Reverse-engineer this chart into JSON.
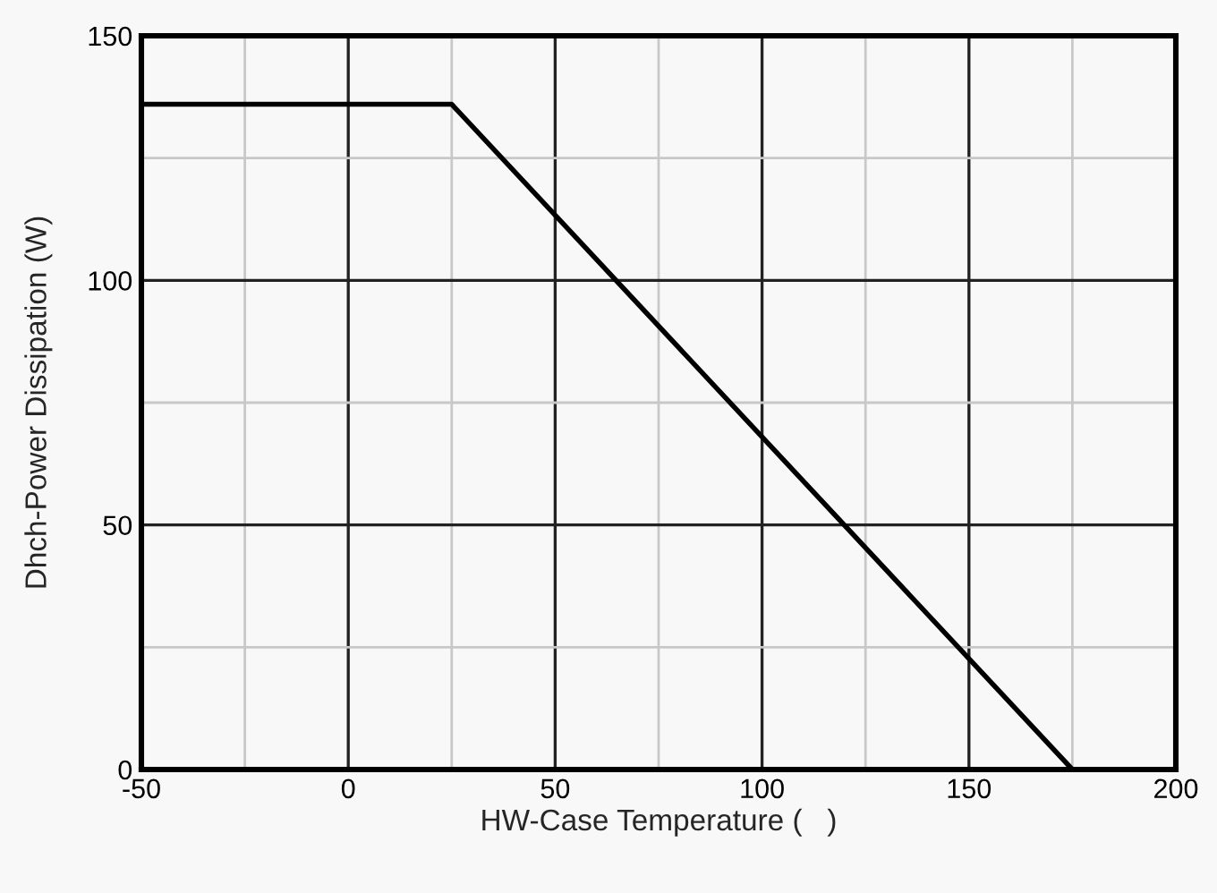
{
  "chart_data": {
    "type": "line",
    "xlabel": "HW-Case Temperature (   )",
    "ylabel": "Dhch-Power Dissipation (W)",
    "x": [
      -50,
      25,
      175
    ],
    "series": [
      {
        "color": "#000000",
        "values": [
          136,
          136,
          0
        ]
      }
    ],
    "xlim": [
      -50,
      200
    ],
    "ylim": [
      0,
      150
    ],
    "xticks": [
      -50,
      {
        "value": -25,
        "label": null
      },
      0,
      {
        "value": 25,
        "label": null
      },
      50,
      {
        "value": 75,
        "label": null
      },
      100,
      {
        "value": 125,
        "label": null
      },
      150,
      {
        "value": 175,
        "label": null
      },
      200
    ],
    "yticks": [
      0,
      {
        "value": 25,
        "label": null
      },
      50,
      {
        "value": 75,
        "label": null
      },
      100,
      {
        "value": 125,
        "label": null
      },
      150
    ],
    "grid": true,
    "marker": "none",
    "line_style": "solid"
  }
}
